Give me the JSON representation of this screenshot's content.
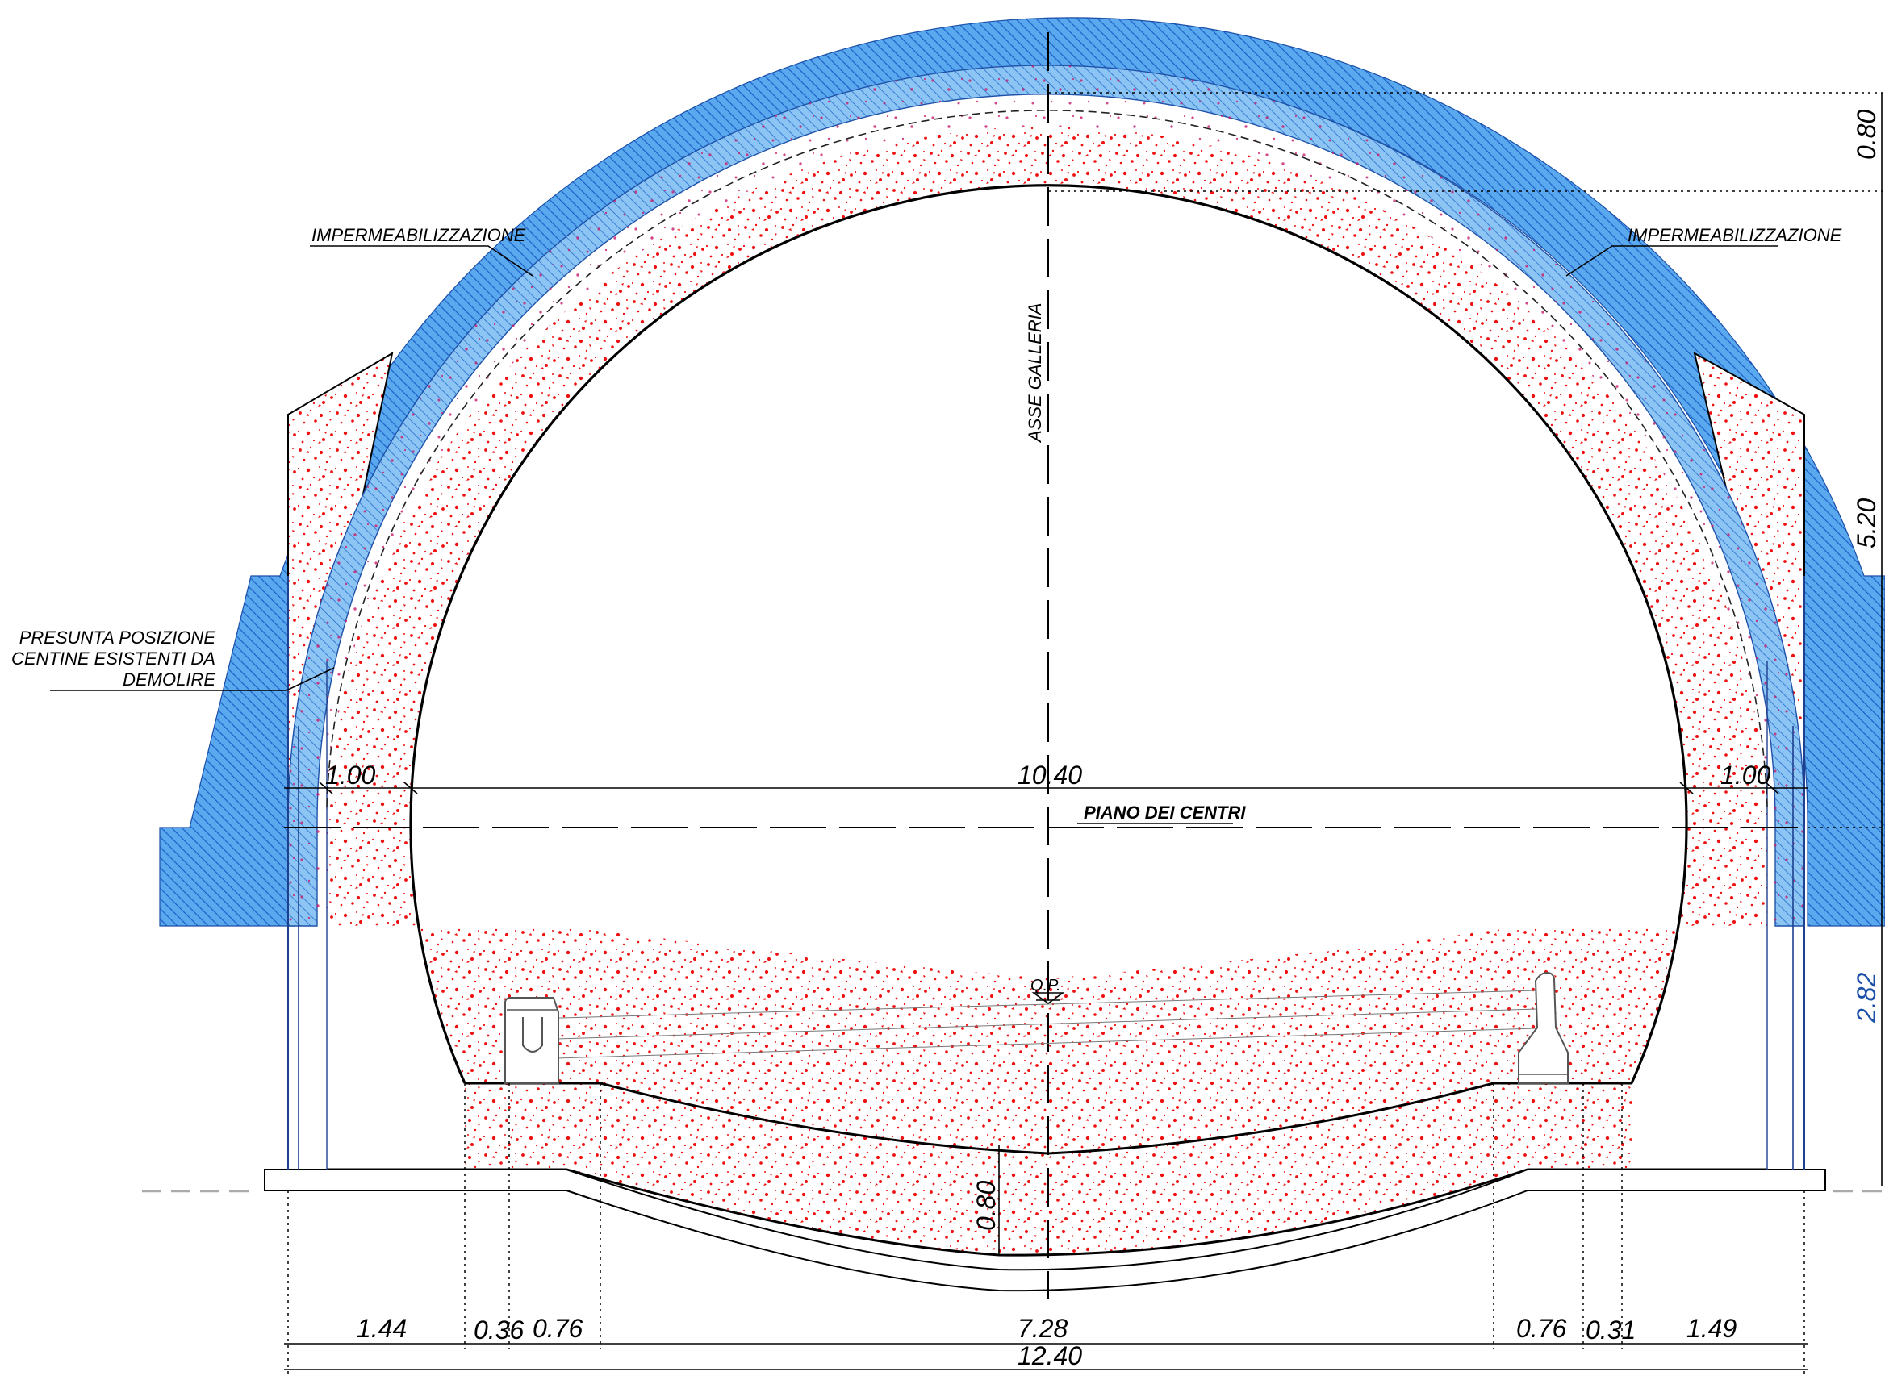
{
  "labels": {
    "impermeabilizzazione_left": "IMPERMEABILIZZAZIONE",
    "impermeabilizzazione_right": "IMPERMEABILIZZAZIONE",
    "presunta_line1": "PRESUNTA POSIZIONE",
    "presunta_line2": "CENTINE ESISTENTI DA",
    "presunta_line3": "DEMOLIRE",
    "asse_galleria": "ASSE GALLERIA",
    "piano_dei_centri": "PIANO DEI CENTRI",
    "qp": "Q.P."
  },
  "dimensions": {
    "crown_thickness": "0.80",
    "height_upper": "5.20",
    "height_lower": "2.82",
    "span_inner": "10.40",
    "side_left": "1.00",
    "side_right": "1.00",
    "invert_thickness": "0.80",
    "bottom": [
      "1.44",
      "0.36",
      "0.76",
      "7.28",
      "0.76",
      "0.31",
      "1.49"
    ],
    "total_width": "12.40"
  },
  "colors": {
    "hatch_blue": "#1a6fd6",
    "fill_blue": "#5aa9ef",
    "concrete_red": "#ee1111",
    "line": "#000000"
  }
}
